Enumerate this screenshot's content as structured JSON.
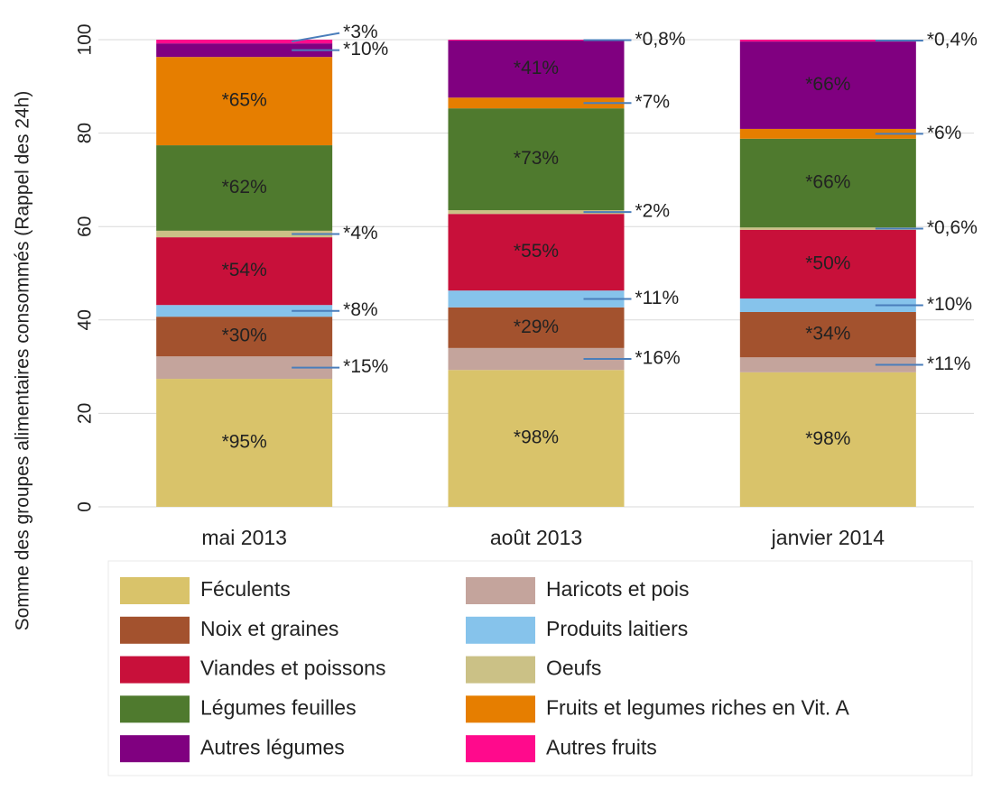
{
  "chart_data": {
    "type": "stacked_bar",
    "y_label": "Somme des groupes alimentaires consommés (Rappel des 24h)",
    "categories": [
      "mai 2013",
      "août 2013",
      "janvier 2014"
    ],
    "ylim": [
      0,
      100
    ],
    "yticks": [
      0,
      20,
      40,
      60,
      80,
      100
    ],
    "grid": true,
    "series": [
      {
        "name": "Féculents",
        "color": "#d9c36a",
        "values": [
          27.4,
          29.3,
          28.8
        ],
        "segment_labels": [
          "*95%",
          "*98%",
          "*98%"
        ]
      },
      {
        "name": "Haricots et pois",
        "color": "#c4a49c",
        "values": [
          4.8,
          4.7,
          3.2
        ],
        "segment_labels": [
          "*15%",
          "*16%",
          "*11%"
        ]
      },
      {
        "name": "Noix et graines",
        "color": "#a3522e",
        "values": [
          8.5,
          8.7,
          9.7
        ],
        "segment_labels": [
          "*30%",
          "*29%",
          "*34%"
        ]
      },
      {
        "name": "Produits laitiers",
        "color": "#86c3eb",
        "values": [
          2.5,
          3.6,
          2.9
        ],
        "segment_labels": [
          "*8%",
          "*11%",
          "*10%"
        ]
      },
      {
        "name": "Viandes et poissons",
        "color": "#c8103a",
        "values": [
          14.5,
          16.4,
          14.7
        ],
        "segment_labels": [
          "*54%",
          "*55%",
          "*50%"
        ]
      },
      {
        "name": "Oeufs",
        "color": "#cbc186",
        "values": [
          1.4,
          0.8,
          0.5
        ],
        "segment_labels": [
          "*4%",
          "*2%",
          "*0,6%"
        ]
      },
      {
        "name": "Légumes feuilles",
        "color": "#4f7a2e",
        "values": [
          18.3,
          21.8,
          19.0
        ],
        "segment_labels": [
          "*62%",
          "*73%",
          "*66%"
        ]
      },
      {
        "name": "Fruits et legumes riches en Vit. A",
        "color": "#e67e00",
        "values": [
          18.9,
          2.3,
          2.1
        ],
        "segment_labels": [
          "*65%",
          "*7%",
          "*6%"
        ]
      },
      {
        "name": "Autres légumes",
        "color": "#800080",
        "values": [
          2.9,
          12.2,
          18.7
        ],
        "segment_labels": [
          "*10%",
          "*41%",
          "*66%"
        ]
      },
      {
        "name": "Autres fruits",
        "color": "#ff0a8c",
        "values": [
          0.8,
          0.2,
          0.4
        ],
        "segment_labels": [
          "*3%",
          "*0,8%",
          "*0,4%"
        ]
      }
    ]
  }
}
